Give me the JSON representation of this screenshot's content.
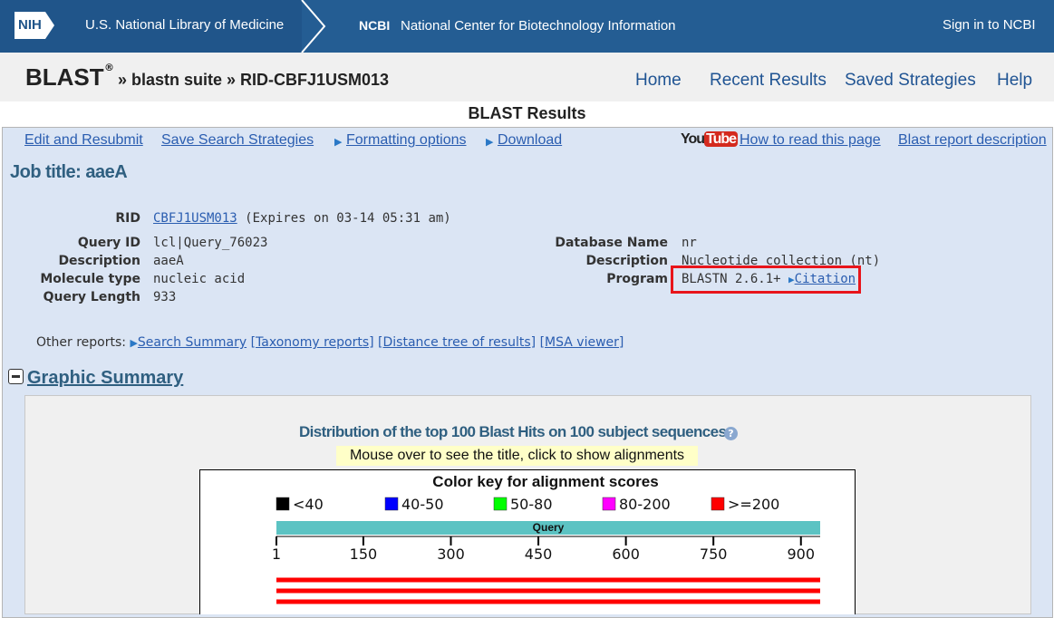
{
  "header": {
    "nih": "NIH",
    "nlm": "U.S. National Library of Medicine",
    "ncbi": "NCBI",
    "ncbi_full": "National Center for Biotechnology Information",
    "sign_in": "Sign in to NCBI"
  },
  "breadcrumb": {
    "blast": "BLAST",
    "reg": "®",
    "suite": "» blastn suite",
    "rid": "» RID-CBFJ1USM013"
  },
  "nav": [
    "Home",
    "Recent Results",
    "Saved Strategies",
    "Help"
  ],
  "page_title": "BLAST Results",
  "toolbar": {
    "edit": "Edit and Resubmit",
    "save": "Save Search Strategies",
    "formatting": "Formatting options",
    "download": "Download",
    "youtube": [
      "You",
      "Tube"
    ],
    "how_to": "How to read this page",
    "report_desc": "Blast report description"
  },
  "job_title": "Job title: aaeA",
  "rid": {
    "label": "RID",
    "value": "CBFJ1USM013",
    "note": "(Expires on 03-14 05:31 am)"
  },
  "query_info": [
    {
      "label": "Query ID",
      "value": "lcl|Query_76023"
    },
    {
      "label": "Description",
      "value": "aaeA"
    },
    {
      "label": "Molecule type",
      "value": "nucleic acid"
    },
    {
      "label": "Query Length",
      "value": 933
    }
  ],
  "db_info": [
    {
      "label": "Database Name",
      "value": "nr"
    },
    {
      "label": "Description",
      "value": "Nucleotide collection (nt)"
    },
    {
      "label": "Program",
      "value": "BLASTN 2.6.1+",
      "link": "Citation"
    }
  ],
  "other_reports": {
    "label": "Other reports:",
    "links": [
      "Search Summary",
      "[Taxonomy reports]",
      "[Distance tree of results]",
      "[MSA viewer]"
    ]
  },
  "graphic_summary": {
    "title": "Graphic Summary",
    "dist_title": "Distribution of the top 100 Blast Hits on 100 subject sequences",
    "hint": "Mouse over to see the title, click to show alignments",
    "key_title": "Color key for alignment scores",
    "key": [
      {
        "color": "#000000",
        "label": "<40"
      },
      {
        "color": "#0000ff",
        "label": "40-50"
      },
      {
        "color": "#00ff00",
        "label": "50-80"
      },
      {
        "color": "#ff00ff",
        "label": "80-200"
      },
      {
        "color": "#ff0000",
        "label": ">=200"
      }
    ],
    "query_label": "Query",
    "ticks": [
      1,
      150,
      300,
      450,
      600,
      750,
      900
    ]
  }
}
